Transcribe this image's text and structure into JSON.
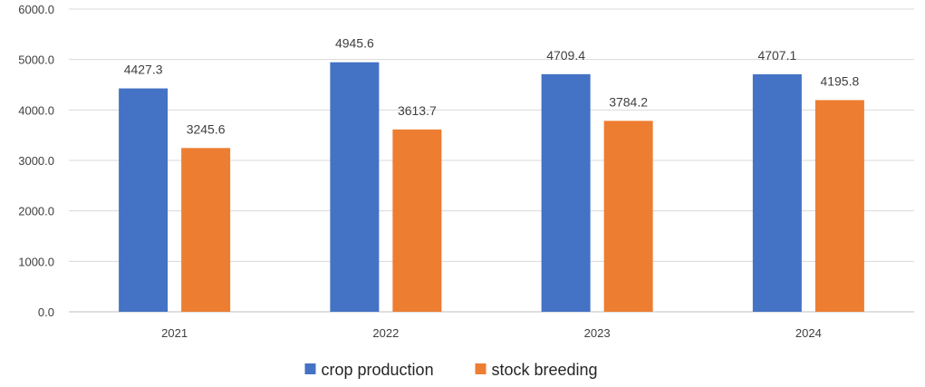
{
  "chart_data": {
    "type": "bar",
    "title": "",
    "xlabel": "",
    "ylabel": "",
    "categories": [
      "2021",
      "2022",
      "2023",
      "2024"
    ],
    "series": [
      {
        "name": "crop production",
        "color": "#4472C4",
        "values": [
          4427.3,
          4945.6,
          4709.4,
          4707.1
        ],
        "labels": [
          "4427.3",
          "4945.6",
          "4709.4",
          "4707.1"
        ]
      },
      {
        "name": "stock breeding",
        "color": "#ED7D31",
        "values": [
          3245.6,
          3613.7,
          3784.2,
          4195.8
        ],
        "labels": [
          "3245.6",
          "3613.7",
          "3784.2",
          "4195.8"
        ]
      }
    ],
    "ylim": [
      0,
      6000
    ],
    "yticks": [
      0,
      1000,
      2000,
      3000,
      4000,
      5000,
      6000
    ],
    "ytick_labels": [
      "0.0",
      "1000.0",
      "2000.0",
      "3000.0",
      "4000.0",
      "5000.0",
      "6000.0"
    ],
    "grid": true,
    "legend_position": "bottom"
  }
}
